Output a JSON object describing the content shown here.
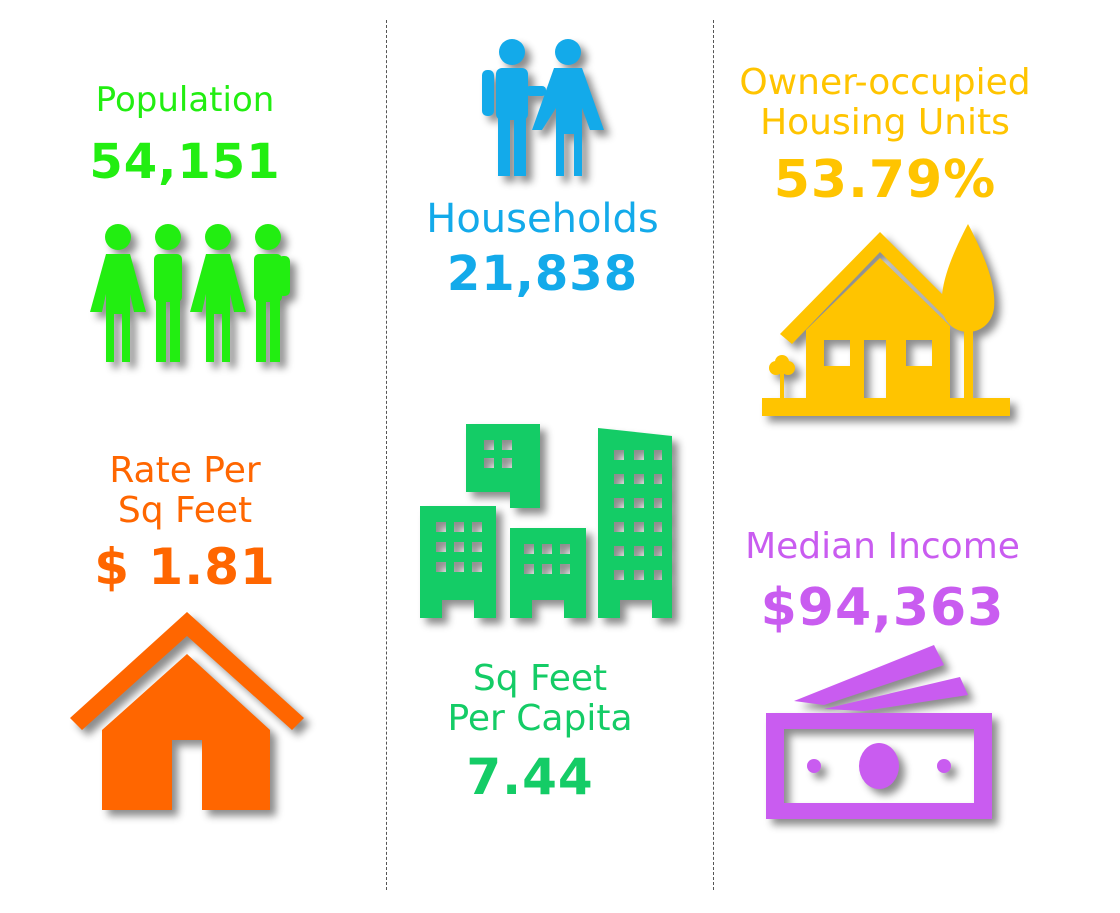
{
  "colors": {
    "population": "#22ee11",
    "households": "#13aaea",
    "owner": "#ffc400",
    "rate": "#ff6600",
    "sqfeet": "#14cc66",
    "income": "#c95cf0"
  },
  "stats": {
    "population": {
      "label": "Population",
      "value": "54,151",
      "icon": "people-group-icon"
    },
    "households": {
      "label": "Households",
      "value": "21,838",
      "icon": "couple-icon"
    },
    "owner": {
      "label_line1": "Owner-occupied",
      "label_line2": "Housing Units",
      "value": "53.79%",
      "icon": "house-tree-icon"
    },
    "rate": {
      "label_line1": "Rate Per",
      "label_line2": "Sq Feet",
      "value": "$ 1.81",
      "icon": "house-icon"
    },
    "sqfeet": {
      "label_line1": "Sq Feet",
      "label_line2": "Per Capita",
      "value": "7.44",
      "icon": "buildings-icon"
    },
    "income": {
      "label": "Median Income",
      "value": "$94,363",
      "icon": "money-icon"
    }
  }
}
